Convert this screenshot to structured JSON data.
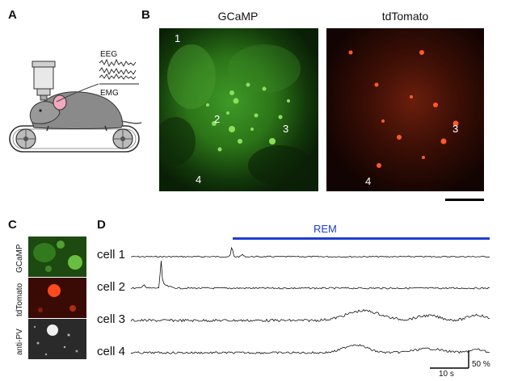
{
  "panels": {
    "a": {
      "letter": "A",
      "eeg_label": "EEG",
      "emg_label": "EMG"
    },
    "b": {
      "letter": "B",
      "gcamp_title": "GCaMP",
      "tdtomato_title": "tdTomato",
      "gcamp_numbers": [
        "1",
        "2",
        "3",
        "4"
      ],
      "tdtomato_numbers": [
        "3",
        "4"
      ]
    },
    "c": {
      "letter": "C",
      "channels": [
        "GCaMP",
        "tdTomato",
        "anti-PV"
      ]
    },
    "d": {
      "letter": "D",
      "rem_label": "REM",
      "cells": [
        "cell 1",
        "cell 2",
        "cell 3",
        "cell 4"
      ],
      "time_scale": "10 s",
      "amp_scale": "50 %"
    }
  },
  "colors": {
    "rem_bar": "#1f3fd1",
    "gcamp": "#3fbf2a",
    "tdtomato": "#e0401a",
    "trace": "#111111"
  }
}
